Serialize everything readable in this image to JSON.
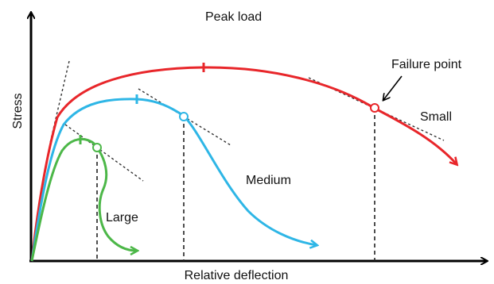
{
  "diagram": {
    "axes": {
      "x_label": "Relative deflection",
      "y_label": "Stress"
    },
    "annotations": {
      "peak_load": "Peak load",
      "failure_point": "Failure point"
    },
    "curves": [
      {
        "id": "small",
        "label": "Small",
        "color": "#e8262a"
      },
      {
        "id": "medium",
        "label": "Medium",
        "color": "#2eb6e6"
      },
      {
        "id": "large",
        "label": "Large",
        "color": "#4cb748"
      }
    ],
    "colors": {
      "axis": "#000000",
      "guides": "#333333"
    }
  }
}
